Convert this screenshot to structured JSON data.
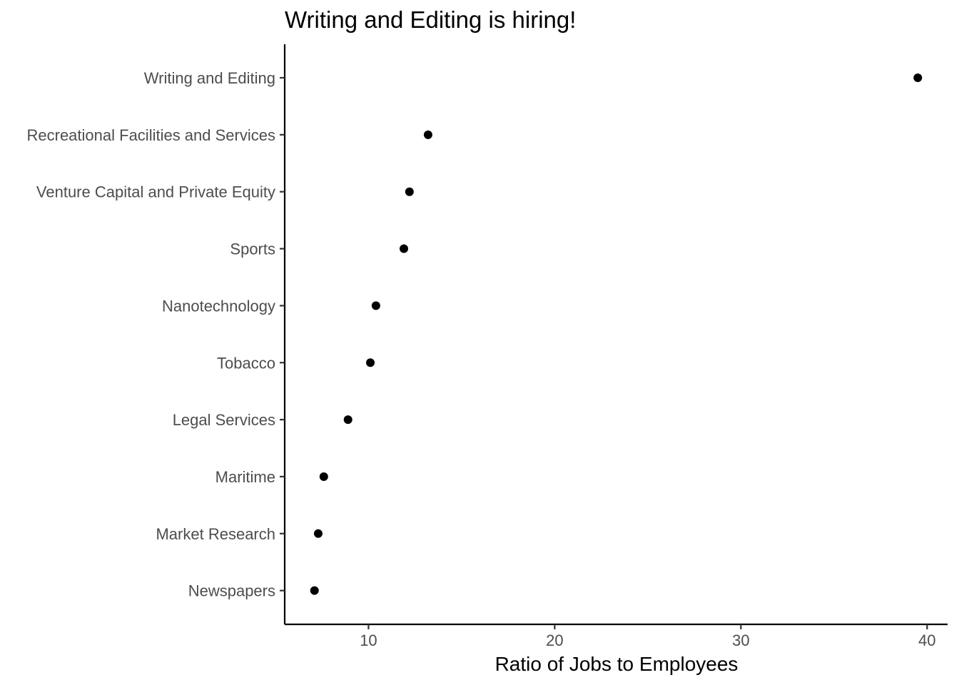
{
  "chart_data": {
    "type": "scatter",
    "title": "Writing and Editing is hiring!",
    "xlabel": "Ratio of Jobs to Employees",
    "ylabel": "",
    "xlim": [
      5.5,
      41.1
    ],
    "x_ticks": [
      10,
      20,
      30,
      40
    ],
    "grid": false,
    "legend": "none",
    "categories": [
      "Writing and Editing",
      "Recreational Facilities and Services",
      "Venture Capital and Private Equity",
      "Sports",
      "Nanotechnology",
      "Tobacco",
      "Legal Services",
      "Maritime",
      "Market Research",
      "Newspapers"
    ],
    "values": [
      39.5,
      13.2,
      12.2,
      11.9,
      10.4,
      10.1,
      8.9,
      7.6,
      7.3,
      7.1
    ],
    "point_color": "#000000"
  }
}
